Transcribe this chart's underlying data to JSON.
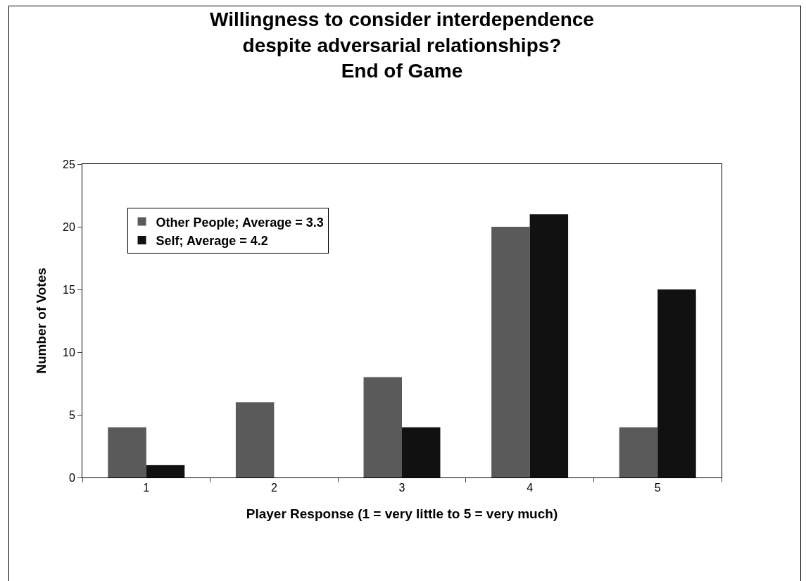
{
  "chart_data": {
    "type": "bar",
    "title": "Willingness to consider interdependence\ndespite adversarial relationships?\nEnd of Game",
    "xlabel": "Player Response (1 = very little to 5 = very much)",
    "ylabel": "Number of Votes",
    "categories": [
      "1",
      "2",
      "3",
      "4",
      "5"
    ],
    "series": [
      {
        "name": "Other People; Average = 3.3",
        "color": "#5a5a5a",
        "values": [
          4,
          6,
          8,
          20,
          4
        ]
      },
      {
        "name": "Self; Average = 4.2",
        "color": "#111111",
        "values": [
          1,
          0,
          4,
          21,
          15
        ]
      }
    ],
    "ylim": [
      0,
      25
    ],
    "yticks": [
      0,
      5,
      10,
      15,
      20,
      25
    ],
    "grid": false,
    "legend": "top left"
  }
}
